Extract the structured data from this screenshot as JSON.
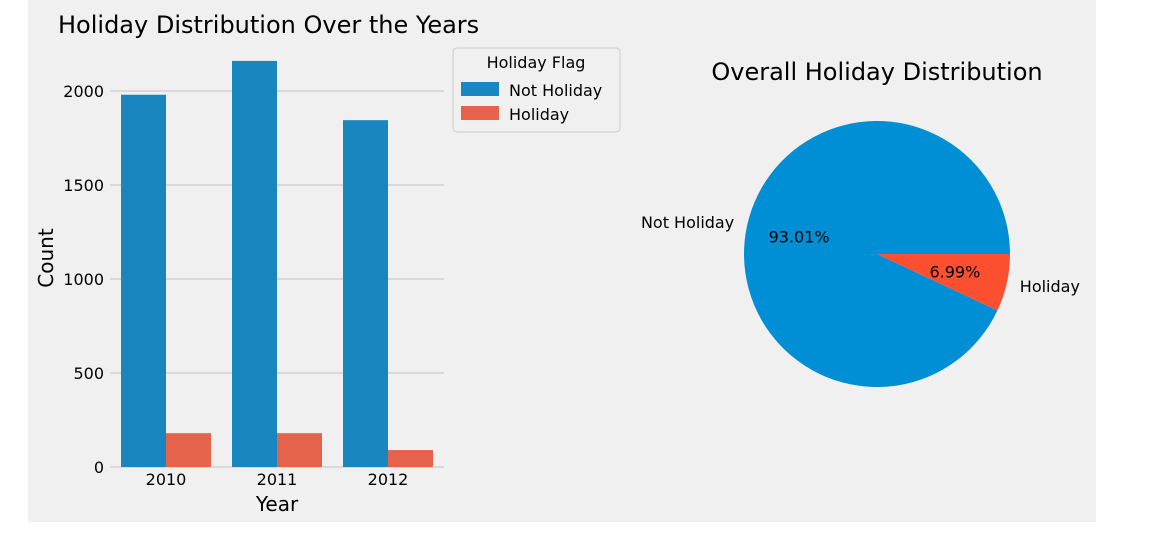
{
  "colors": {
    "figure_bg": "#f0f0f0",
    "grid": "#cbcbcb",
    "not_holiday_bar": "#1a86bf",
    "holiday_bar": "#e5634a",
    "not_holiday_pie": "#008fd5",
    "holiday_pie": "#fc4f30"
  },
  "chart_data": [
    {
      "type": "bar",
      "title": "Holiday Distribution Over the Years",
      "xlabel": "Year",
      "ylabel": "Count",
      "categories": [
        "2010",
        "2011",
        "2012"
      ],
      "series": [
        {
          "name": "Not Holiday",
          "values": [
            1980,
            2160,
            1845
          ]
        },
        {
          "name": "Holiday",
          "values": [
            180,
            180,
            90
          ]
        }
      ],
      "ylim": [
        0,
        2200
      ],
      "yticks": [
        0,
        500,
        1000,
        1500,
        2000
      ],
      "grid": true,
      "legend": {
        "title": "Holiday Flag",
        "entries": [
          "Not Holiday",
          "Holiday"
        ],
        "placement": "outside-top-right"
      }
    },
    {
      "type": "pie",
      "title": "Overall Holiday Distribution",
      "labels": [
        "Not Holiday",
        "Holiday"
      ],
      "values": [
        93.01,
        6.99
      ],
      "pct_labels": [
        "93.01%",
        "6.99%"
      ]
    }
  ]
}
